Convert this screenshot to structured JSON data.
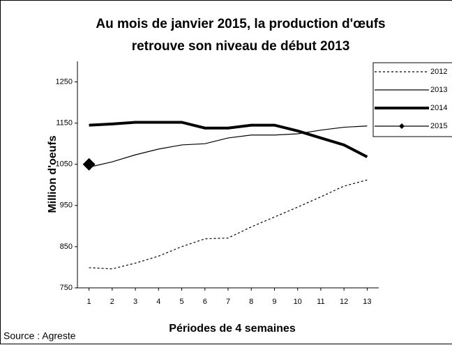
{
  "chart_data": {
    "type": "line",
    "title": [
      "Au mois de janvier 2015, la production d'œufs",
      "retrouve son niveau de début 2013"
    ],
    "y_label": "Million d'oeufs",
    "x_label": "Périodes de 4 semaines",
    "source": "Source : Agreste",
    "x": [
      1,
      2,
      3,
      4,
      5,
      6,
      7,
      8,
      9,
      10,
      11,
      12,
      13
    ],
    "xlim": [
      0.5,
      13.5
    ],
    "xticks": [
      1,
      2,
      3,
      4,
      5,
      6,
      7,
      8,
      9,
      10,
      11,
      12,
      13
    ],
    "ylim": [
      750,
      1300
    ],
    "yticks": [
      750,
      850,
      950,
      1050,
      1150,
      1250
    ],
    "legend": "right",
    "series": [
      {
        "name": "2012",
        "color": "#000000",
        "style": "dotted",
        "width": 1.2,
        "values": [
          799,
          796,
          810,
          827,
          850,
          869,
          871,
          898,
          922,
          946,
          971,
          997,
          1012
        ]
      },
      {
        "name": "2013",
        "color": "#000000",
        "style": "solid",
        "width": 1.2,
        "values": [
          1043,
          1056,
          1073,
          1087,
          1097,
          1100,
          1114,
          1121,
          1121,
          1124,
          1133,
          1140,
          1143
        ]
      },
      {
        "name": "2014",
        "color": "#000000",
        "style": "solid",
        "width": 4,
        "values": [
          1145,
          1148,
          1152,
          1152,
          1152,
          1138,
          1138,
          1145,
          1145,
          1131,
          1114,
          1097,
          1068
        ]
      },
      {
        "name": "2015",
        "color": "#000000",
        "style": "solid",
        "width": 1.2,
        "marker": "diamond",
        "values": [
          1050,
          null,
          null,
          null,
          null,
          null,
          null,
          null,
          null,
          null,
          null,
          null,
          null
        ]
      }
    ]
  }
}
